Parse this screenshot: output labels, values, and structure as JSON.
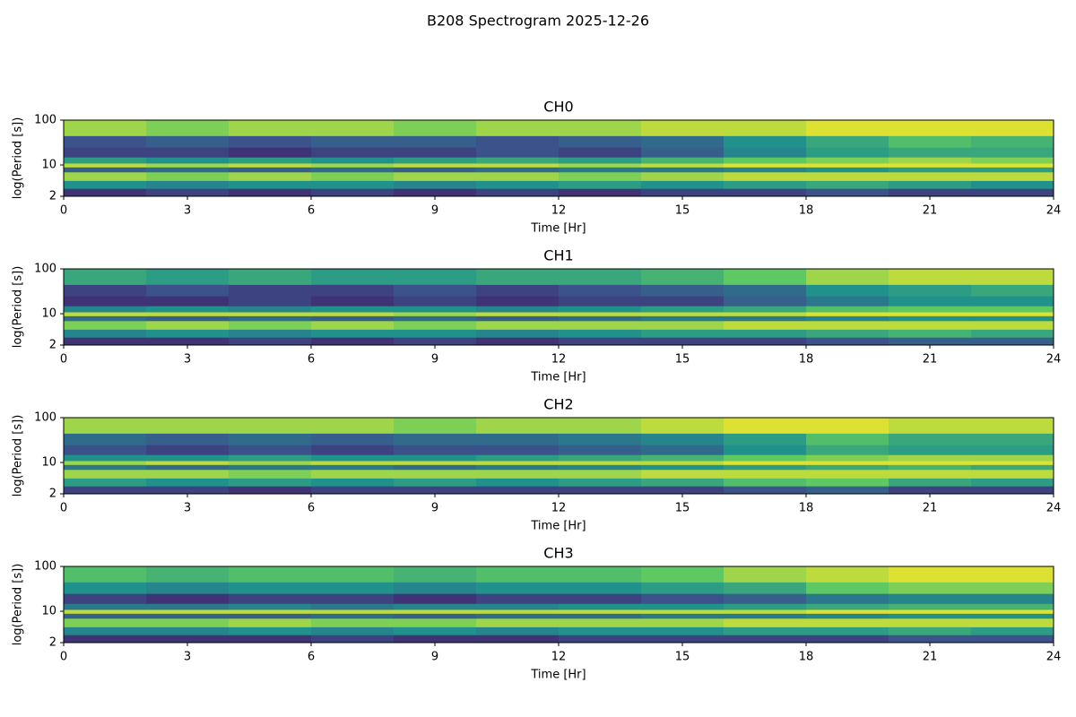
{
  "title": "B208 Spectrogram 2025-12-26",
  "chart_data": [
    {
      "type": "heatmap",
      "title": "CH0",
      "xlabel": "Time [Hr]",
      "ylabel": "log(Period [s])",
      "yscale": "log",
      "colormap": "viridis",
      "zlim": [
        0,
        1
      ],
      "xlim": [
        0,
        24
      ],
      "xticks": [
        0,
        3,
        6,
        9,
        12,
        15,
        18,
        21,
        24
      ],
      "ylim": [
        2,
        100
      ],
      "yticks": [
        2,
        10,
        100
      ],
      "x_edges": [
        0,
        2,
        4,
        6,
        8,
        10,
        12,
        14,
        16,
        18,
        20,
        22,
        24
      ],
      "y_edges": [
        2,
        3,
        4.5,
        7,
        9,
        11,
        15,
        25,
        45,
        100
      ],
      "z": [
        [
          0.15,
          0.2,
          0.15,
          0.2,
          0.15,
          0.2,
          0.15,
          0.2,
          0.2,
          0.25,
          0.2,
          0.2
        ],
        [
          0.5,
          0.45,
          0.5,
          0.5,
          0.45,
          0.5,
          0.55,
          0.5,
          0.55,
          0.6,
          0.55,
          0.5
        ],
        [
          0.85,
          0.8,
          0.85,
          0.8,
          0.85,
          0.85,
          0.8,
          0.85,
          0.9,
          0.9,
          0.9,
          0.9
        ],
        [
          0.3,
          0.35,
          0.3,
          0.35,
          0.3,
          0.35,
          0.4,
          0.4,
          0.45,
          0.5,
          0.55,
          0.55
        ],
        [
          0.9,
          0.85,
          0.9,
          0.85,
          0.9,
          0.9,
          0.85,
          0.9,
          0.95,
          0.95,
          0.95,
          0.95
        ],
        [
          0.55,
          0.5,
          0.55,
          0.5,
          0.55,
          0.6,
          0.55,
          0.65,
          0.75,
          0.8,
          0.85,
          0.8
        ],
        [
          0.2,
          0.2,
          0.15,
          0.2,
          0.2,
          0.25,
          0.2,
          0.3,
          0.45,
          0.55,
          0.6,
          0.6
        ],
        [
          0.25,
          0.3,
          0.25,
          0.3,
          0.3,
          0.25,
          0.3,
          0.35,
          0.5,
          0.6,
          0.7,
          0.65
        ],
        [
          0.85,
          0.8,
          0.85,
          0.85,
          0.8,
          0.85,
          0.85,
          0.9,
          0.9,
          0.95,
          0.95,
          0.95
        ]
      ]
    },
    {
      "type": "heatmap",
      "title": "CH1",
      "xlabel": "Time [Hr]",
      "ylabel": "log(Period [s])",
      "yscale": "log",
      "colormap": "viridis",
      "zlim": [
        0,
        1
      ],
      "xlim": [
        0,
        24
      ],
      "xticks": [
        0,
        3,
        6,
        9,
        12,
        15,
        18,
        21,
        24
      ],
      "ylim": [
        2,
        100
      ],
      "yticks": [
        2,
        10,
        100
      ],
      "x_edges": [
        0,
        2,
        4,
        6,
        8,
        10,
        12,
        14,
        16,
        18,
        20,
        22,
        24
      ],
      "y_edges": [
        2,
        3,
        4.5,
        7,
        9,
        11,
        15,
        25,
        45,
        100
      ],
      "z": [
        [
          0.15,
          0.15,
          0.2,
          0.15,
          0.2,
          0.15,
          0.2,
          0.2,
          0.2,
          0.25,
          0.3,
          0.3
        ],
        [
          0.45,
          0.5,
          0.45,
          0.5,
          0.5,
          0.45,
          0.5,
          0.55,
          0.55,
          0.6,
          0.65,
          0.6
        ],
        [
          0.8,
          0.85,
          0.8,
          0.85,
          0.8,
          0.85,
          0.85,
          0.85,
          0.9,
          0.9,
          0.9,
          0.9
        ],
        [
          0.35,
          0.3,
          0.35,
          0.3,
          0.35,
          0.3,
          0.35,
          0.4,
          0.4,
          0.45,
          0.5,
          0.5
        ],
        [
          0.9,
          0.9,
          0.9,
          0.9,
          0.85,
          0.9,
          0.9,
          0.9,
          0.9,
          0.95,
          0.95,
          0.95
        ],
        [
          0.45,
          0.5,
          0.45,
          0.5,
          0.5,
          0.45,
          0.5,
          0.55,
          0.6,
          0.7,
          0.75,
          0.75
        ],
        [
          0.15,
          0.15,
          0.2,
          0.15,
          0.2,
          0.15,
          0.2,
          0.2,
          0.3,
          0.4,
          0.5,
          0.5
        ],
        [
          0.2,
          0.25,
          0.2,
          0.2,
          0.25,
          0.2,
          0.25,
          0.3,
          0.35,
          0.5,
          0.55,
          0.6
        ],
        [
          0.6,
          0.55,
          0.6,
          0.55,
          0.55,
          0.6,
          0.6,
          0.65,
          0.75,
          0.85,
          0.9,
          0.9
        ]
      ]
    },
    {
      "type": "heatmap",
      "title": "CH2",
      "xlabel": "Time [Hr]",
      "ylabel": "log(Period [s])",
      "yscale": "log",
      "colormap": "viridis",
      "zlim": [
        0,
        1
      ],
      "xlim": [
        0,
        24
      ],
      "xticks": [
        0,
        3,
        6,
        9,
        12,
        15,
        18,
        21,
        24
      ],
      "ylim": [
        2,
        100
      ],
      "yticks": [
        2,
        10,
        100
      ],
      "x_edges": [
        0,
        2,
        4,
        6,
        8,
        10,
        12,
        14,
        16,
        18,
        20,
        22,
        24
      ],
      "y_edges": [
        2,
        3,
        4.5,
        7,
        9,
        11,
        15,
        25,
        45,
        100
      ],
      "z": [
        [
          0.2,
          0.2,
          0.15,
          0.2,
          0.2,
          0.2,
          0.2,
          0.2,
          0.25,
          0.3,
          0.2,
          0.2
        ],
        [
          0.55,
          0.5,
          0.55,
          0.5,
          0.55,
          0.5,
          0.55,
          0.6,
          0.7,
          0.75,
          0.6,
          0.55
        ],
        [
          0.85,
          0.85,
          0.8,
          0.85,
          0.85,
          0.85,
          0.85,
          0.9,
          0.9,
          0.9,
          0.9,
          0.9
        ],
        [
          0.4,
          0.35,
          0.4,
          0.4,
          0.35,
          0.4,
          0.45,
          0.5,
          0.55,
          0.6,
          0.65,
          0.6
        ],
        [
          0.85,
          0.9,
          0.85,
          0.9,
          0.9,
          0.9,
          0.9,
          0.9,
          0.95,
          0.95,
          0.95,
          0.95
        ],
        [
          0.5,
          0.5,
          0.55,
          0.5,
          0.5,
          0.55,
          0.6,
          0.65,
          0.75,
          0.8,
          0.85,
          0.85
        ],
        [
          0.25,
          0.2,
          0.25,
          0.2,
          0.25,
          0.25,
          0.3,
          0.35,
          0.5,
          0.6,
          0.55,
          0.55
        ],
        [
          0.35,
          0.3,
          0.35,
          0.3,
          0.35,
          0.35,
          0.4,
          0.45,
          0.55,
          0.7,
          0.6,
          0.6
        ],
        [
          0.85,
          0.85,
          0.85,
          0.85,
          0.8,
          0.85,
          0.85,
          0.9,
          0.95,
          0.95,
          0.9,
          0.9
        ]
      ]
    },
    {
      "type": "heatmap",
      "title": "CH3",
      "xlabel": "Time [Hr]",
      "ylabel": "log(Period [s])",
      "yscale": "log",
      "colormap": "viridis",
      "zlim": [
        0,
        1
      ],
      "xlim": [
        0,
        24
      ],
      "xticks": [
        0,
        3,
        6,
        9,
        12,
        15,
        18,
        21,
        24
      ],
      "ylim": [
        2,
        100
      ],
      "yticks": [
        2,
        10,
        100
      ],
      "x_edges": [
        0,
        2,
        4,
        6,
        8,
        10,
        12,
        14,
        16,
        18,
        20,
        22,
        24
      ],
      "y_edges": [
        2,
        3,
        4.5,
        7,
        9,
        11,
        15,
        25,
        45,
        100
      ],
      "z": [
        [
          0.15,
          0.15,
          0.15,
          0.2,
          0.15,
          0.15,
          0.2,
          0.2,
          0.2,
          0.2,
          0.25,
          0.25
        ],
        [
          0.45,
          0.45,
          0.5,
          0.45,
          0.5,
          0.45,
          0.5,
          0.5,
          0.55,
          0.55,
          0.6,
          0.55
        ],
        [
          0.8,
          0.8,
          0.85,
          0.8,
          0.8,
          0.85,
          0.85,
          0.85,
          0.9,
          0.9,
          0.9,
          0.9
        ],
        [
          0.3,
          0.3,
          0.3,
          0.35,
          0.3,
          0.35,
          0.35,
          0.4,
          0.4,
          0.45,
          0.5,
          0.5
        ],
        [
          0.9,
          0.9,
          0.9,
          0.9,
          0.9,
          0.9,
          0.9,
          0.9,
          0.9,
          0.95,
          0.95,
          0.95
        ],
        [
          0.4,
          0.4,
          0.45,
          0.4,
          0.45,
          0.45,
          0.5,
          0.5,
          0.55,
          0.6,
          0.65,
          0.65
        ],
        [
          0.2,
          0.15,
          0.2,
          0.2,
          0.15,
          0.2,
          0.2,
          0.25,
          0.3,
          0.4,
          0.45,
          0.45
        ],
        [
          0.5,
          0.45,
          0.5,
          0.5,
          0.45,
          0.5,
          0.5,
          0.55,
          0.6,
          0.75,
          0.8,
          0.8
        ],
        [
          0.7,
          0.65,
          0.7,
          0.7,
          0.65,
          0.7,
          0.7,
          0.75,
          0.85,
          0.9,
          0.95,
          0.95
        ]
      ]
    }
  ]
}
